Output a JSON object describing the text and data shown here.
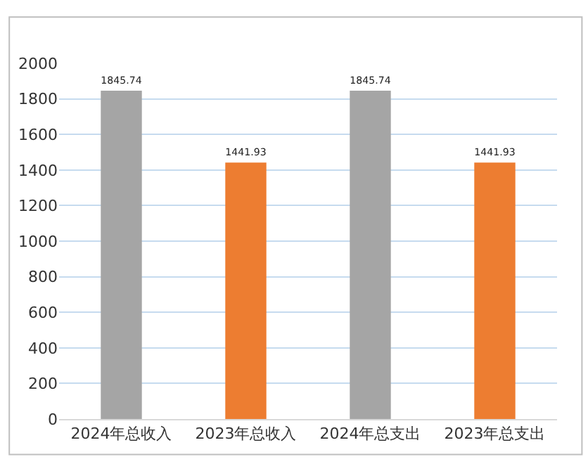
{
  "chart_data": {
    "type": "bar",
    "categories": [
      "2024年总收入",
      "2023年总收入",
      "2024年总支出",
      "2023年总支出"
    ],
    "values": [
      1845.74,
      1441.93,
      1845.74,
      1441.93
    ],
    "colors": [
      "#a5a5a5",
      "#ed7d31",
      "#a5a5a5",
      "#ed7d31"
    ],
    "ylim": [
      0,
      2000
    ],
    "yticks": [
      0,
      200,
      400,
      600,
      800,
      1000,
      1200,
      1400,
      1600,
      1800,
      2000
    ],
    "grid": "y",
    "data_labels": true,
    "legend": false
  }
}
